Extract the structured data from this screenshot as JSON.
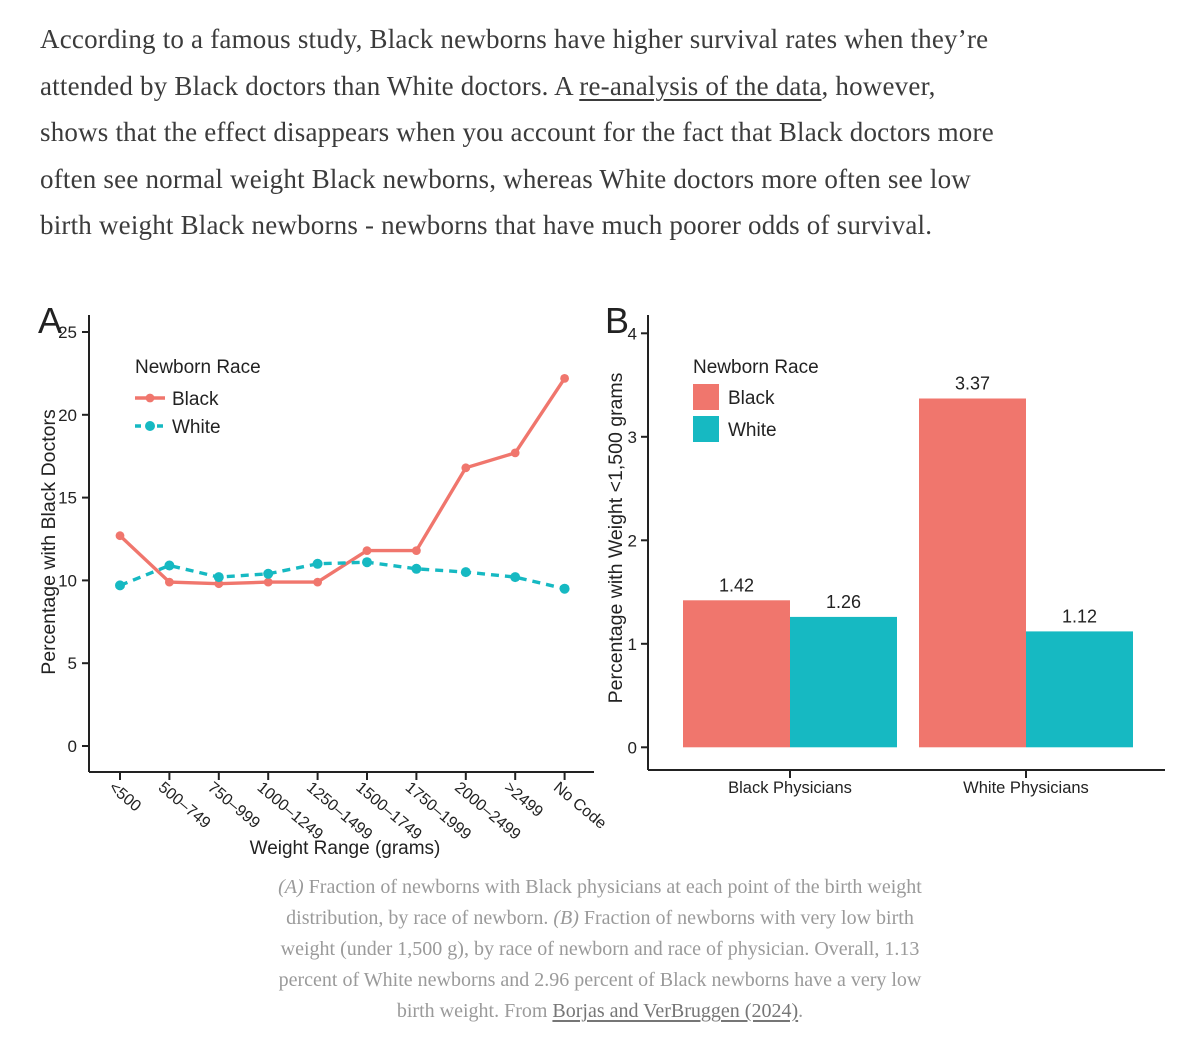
{
  "intro": {
    "lines": [
      [
        {
          "t": "According to a famous study, Black newborns have higher survival rates when they’re"
        }
      ],
      [
        {
          "t": "attended by Black doctors than White doctors. A "
        },
        {
          "t": "re-analysis of the data",
          "s": "link"
        },
        {
          "t": ", however,"
        }
      ],
      [
        {
          "t": "shows that the effect disappears when you account for the fact that Black doctors more"
        }
      ],
      [
        {
          "t": "often see normal weight Black newborns, whereas White doctors more often see low"
        }
      ],
      [
        {
          "t": "birth weight Black newborns - newborns that have much poorer odds of survival."
        }
      ]
    ]
  },
  "colors": {
    "black_series": "#F0766D",
    "white_series": "#16B9C2",
    "axis": "#222222",
    "chart_text": "#222222",
    "caption_text": "#9a9a9a"
  },
  "chart_data": [
    {
      "type": "line",
      "panel_label": "A",
      "legend_title": "Newborn Race",
      "xlabel": "Weight Range (grams)",
      "ylabel": "Percentage with Black Doctors",
      "categories": [
        "<500",
        "500–749",
        "750–999",
        "1000–1249",
        "1250–1499",
        "1500–1749",
        "1750–1999",
        "2000–2499",
        ">2499",
        "No Code"
      ],
      "ylim": [
        0,
        25
      ],
      "yticks": [
        0,
        5,
        10,
        15,
        20,
        25
      ],
      "grid": false,
      "legend_position": "inside-top-left",
      "series": [
        {
          "name": "Black",
          "style": "solid",
          "color": "#F0766D",
          "values": [
            12.7,
            9.9,
            9.8,
            9.9,
            9.9,
            11.8,
            11.8,
            16.8,
            17.7,
            22.2
          ]
        },
        {
          "name": "White",
          "style": "dashed",
          "color": "#16B9C2",
          "values": [
            9.7,
            10.9,
            10.2,
            10.4,
            11.0,
            11.1,
            10.7,
            10.5,
            10.2,
            9.5
          ]
        }
      ]
    },
    {
      "type": "bar",
      "panel_label": "B",
      "legend_title": "Newborn Race",
      "xlabel": "",
      "ylabel": "Percentage with Weight <1,500 grams",
      "categories": [
        "Black Physicians",
        "White Physicians"
      ],
      "ylim": [
        0,
        4
      ],
      "yticks": [
        0,
        1,
        2,
        3,
        4
      ],
      "grid": false,
      "legend_position": "inside-top-left",
      "series": [
        {
          "name": "Black",
          "color": "#F0766D",
          "values": [
            1.42,
            3.37
          ],
          "value_labels": [
            "1.42",
            "3.37"
          ]
        },
        {
          "name": "White",
          "color": "#16B9C2",
          "values": [
            1.26,
            1.12
          ],
          "value_labels": [
            "1.26",
            "1.12"
          ]
        }
      ]
    }
  ],
  "caption": {
    "lines": [
      [
        {
          "t": "(A)",
          "s": "i"
        },
        {
          "t": " Fraction of newborns with Black physicians at each point of the birth weight"
        }
      ],
      [
        {
          "t": "distribution, by race of newborn. "
        },
        {
          "t": "(B)",
          "s": "i"
        },
        {
          "t": " Fraction of newborns with very low birth"
        }
      ],
      [
        {
          "t": "weight (under 1,500 g), by race of newborn and race of physician. Overall, 1.13"
        }
      ],
      [
        {
          "t": "percent of White newborns and 2.96 percent of Black newborns have a very low"
        }
      ],
      [
        {
          "t": "birth weight. From "
        },
        {
          "t": "Borjas and VerBruggen (2024)",
          "s": "link"
        },
        {
          "t": "."
        }
      ]
    ]
  }
}
